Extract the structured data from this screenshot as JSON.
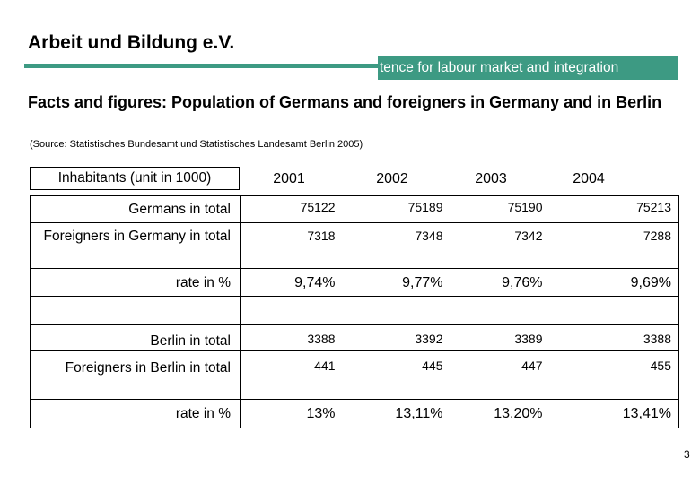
{
  "header": {
    "org_title": "Arbeit und Bildung e.V.",
    "banner_text": "tence for labour market and integration",
    "accent_color": "#3d9a83"
  },
  "slide": {
    "headline": "Facts and figures: Population of Germans and foreigners in Germany and in Berlin",
    "source": "(Source: Statistisches Bundesamt und Statistisches Landesamt Berlin 2005)",
    "page_number": "3"
  },
  "table": {
    "header_label": "Inhabitants (unit in 1000)",
    "years": [
      "2001",
      "2002",
      "2003",
      "2004"
    ],
    "rows": [
      {
        "label": "Germans in total",
        "values": [
          "75122",
          "75189",
          "75190",
          "75213"
        ]
      },
      {
        "label": "Foreigners in Germany in total",
        "values": [
          "7318",
          "7348",
          "7342",
          "7288"
        ]
      },
      {
        "label": "rate in %",
        "values": [
          "9,74%",
          "9,77%",
          "9,76%",
          "9,69%"
        ]
      },
      {
        "label": "",
        "values": [
          "",
          "",
          "",
          ""
        ]
      },
      {
        "label": "Berlin in total",
        "values": [
          "3388",
          "3392",
          "3389",
          "3388"
        ]
      },
      {
        "label": "Foreigners in Berlin in total",
        "values": [
          "441",
          "445",
          "447",
          "455"
        ]
      },
      {
        "label": "rate in %",
        "values": [
          "13%",
          "13,11%",
          "13,20%",
          "13,41%"
        ]
      }
    ]
  }
}
